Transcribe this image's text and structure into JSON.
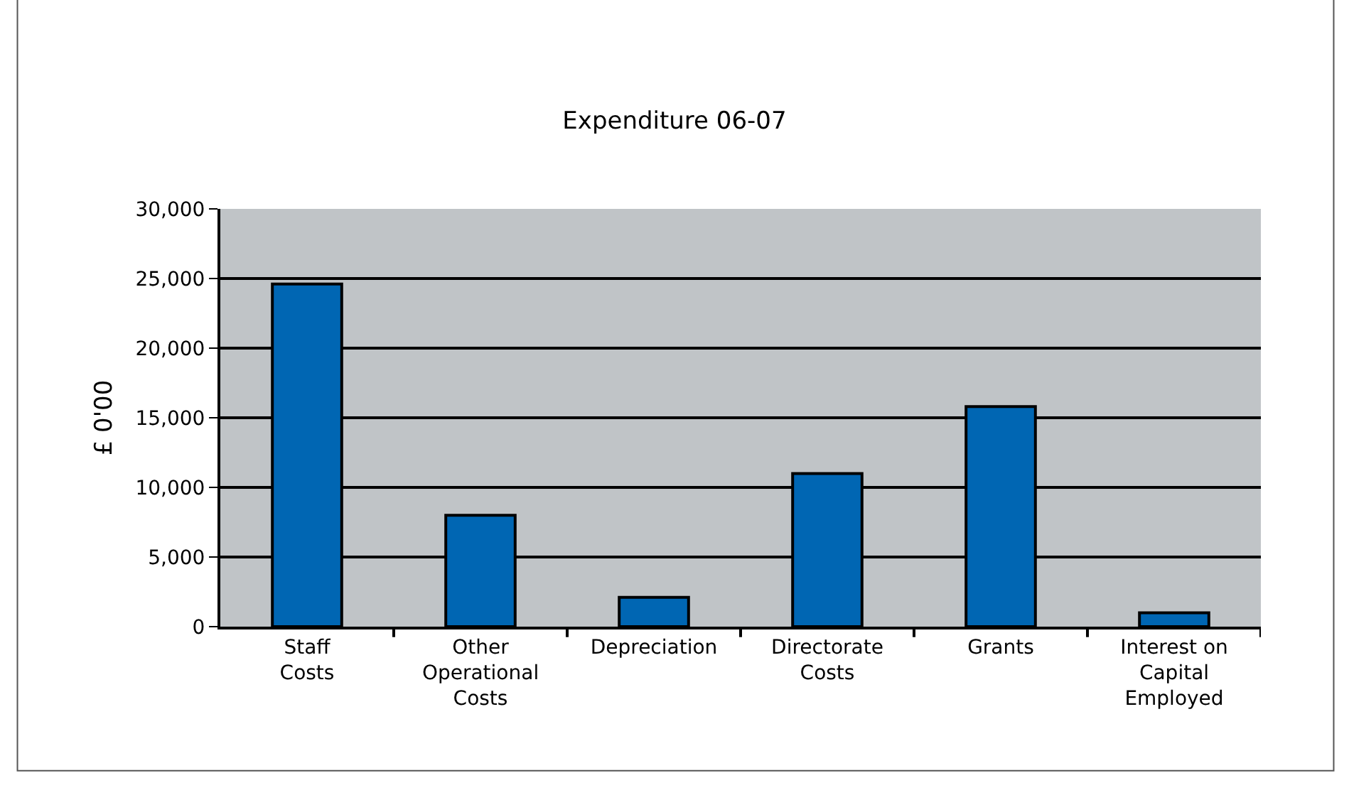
{
  "chart_data": {
    "type": "bar",
    "title": "Expenditure 06-07",
    "ylabel": "£ 0'00",
    "categories": [
      "Staff\nCosts",
      "Other\nOperational\nCosts",
      "Depreciation",
      "Directorate\nCosts",
      "Grants",
      "Interest on\nCapital\nEmployed"
    ],
    "values": [
      24600,
      8000,
      2100,
      11000,
      15800,
      1000
    ],
    "color": "#0066b3",
    "ylim": [
      0,
      30000
    ],
    "yticks": [
      {
        "value": 0,
        "label": "0"
      },
      {
        "value": 5000,
        "label": "5,000"
      },
      {
        "value": 10000,
        "label": "10,000"
      },
      {
        "value": 15000,
        "label": "15,000"
      },
      {
        "value": 20000,
        "label": "20,000"
      },
      {
        "value": 25000,
        "label": "25,000"
      },
      {
        "value": 30000,
        "label": "30,000"
      }
    ],
    "grid": "y"
  }
}
